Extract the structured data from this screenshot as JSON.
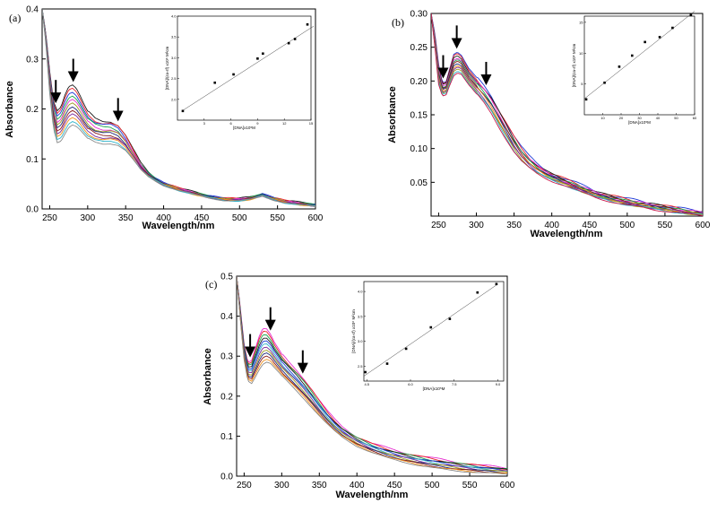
{
  "figure": {
    "panels": [
      {
        "panel_label": "(a)",
        "chart_data": {
          "type": "line",
          "xlabel": "Wavelength/nm",
          "ylabel": "Absorbance",
          "xlim": [
            240,
            600
          ],
          "ylim": [
            0.0,
            0.4
          ],
          "xticks": [
            "250",
            "300",
            "350",
            "400",
            "450",
            "500",
            "550",
            "600"
          ],
          "yticks": [
            "0.0",
            "0.1",
            "0.2",
            "0.3",
            "0.4"
          ],
          "series_count": 12,
          "colors": [
            "#1a1a1a",
            "#e8232a",
            "#1f3bd8",
            "#19a64b",
            "#e62fd1",
            "#9b9b1f",
            "#1e2a7a",
            "#8a1c1c",
            "#7a2a9e",
            "#f0901a",
            "#2fb3c9",
            "#8a8a8a"
          ],
          "profile": {
            "x": [
              240,
              245,
              250,
              255,
              260,
              265,
              270,
              275,
              280,
              285,
              290,
              295,
              300,
              310,
              320,
              330,
              340,
              350,
              360,
              370,
              380,
              390,
              400,
              420,
              440,
              460,
              480,
              500,
              515,
              530,
              545,
              560,
              580,
              600
            ],
            "top": [
              0.4,
              0.35,
              0.275,
              0.215,
              0.197,
              0.205,
              0.228,
              0.245,
              0.248,
              0.241,
              0.226,
              0.209,
              0.195,
              0.181,
              0.176,
              0.176,
              0.168,
              0.147,
              0.118,
              0.091,
              0.073,
              0.061,
              0.052,
              0.041,
              0.033,
              0.026,
              0.021,
              0.02,
              0.023,
              0.03,
              0.022,
              0.016,
              0.012,
              0.009
            ],
            "bottom": [
              0.4,
              0.33,
              0.23,
              0.16,
              0.133,
              0.136,
              0.15,
              0.163,
              0.168,
              0.165,
              0.158,
              0.149,
              0.141,
              0.133,
              0.13,
              0.131,
              0.128,
              0.117,
              0.098,
              0.078,
              0.064,
              0.055,
              0.047,
              0.037,
              0.029,
              0.022,
              0.017,
              0.016,
              0.019,
              0.026,
              0.018,
              0.012,
              0.008,
              0.005
            ]
          },
          "arrows_at_nm": [
            258,
            281,
            340
          ],
          "inset": {
            "type": "scatter",
            "xlabel": "[DNA]x10⁵M",
            "ylabel": "[DNA]/(εa-εf) x10⁸ M²cm",
            "xlim": [
              0,
              15
            ],
            "ylim": [
              1.5,
              4.0
            ],
            "xticks": [
              "3",
              "6",
              "9",
              "12",
              "15"
            ],
            "yticks": [
              "2.0",
              "2.5",
              "3.0",
              "3.5",
              "4.0"
            ],
            "points": [
              [
                0.6,
                1.72
              ],
              [
                4.2,
                2.4
              ],
              [
                6.3,
                2.6
              ],
              [
                9.0,
                2.98
              ],
              [
                9.6,
                3.1
              ],
              [
                12.5,
                3.35
              ],
              [
                13.2,
                3.45
              ],
              [
                14.6,
                3.8
              ]
            ],
            "fit_line": [
              [
                0.5,
                1.72
              ],
              [
                15.3,
                3.76
              ]
            ]
          }
        }
      },
      {
        "panel_label": "(b)",
        "chart_data": {
          "type": "line",
          "xlabel": "Wavelength/nm",
          "ylabel": "Absorbance",
          "xlim": [
            240,
            600
          ],
          "ylim": [
            0.0,
            0.3
          ],
          "xticks": [
            "250",
            "300",
            "350",
            "400",
            "450",
            "500",
            "550",
            "600"
          ],
          "yticks": [
            "0.05",
            "0.10",
            "0.15",
            "0.20",
            "0.25",
            "0.30"
          ],
          "series_count": 12,
          "colors": [
            "#1f3bd8",
            "#e8232a",
            "#1a1a1a",
            "#e62fd1",
            "#19a64b",
            "#8a1c1c",
            "#1e2a7a",
            "#f0901a",
            "#7a2a9e",
            "#9b9b1f",
            "#2fb3c9",
            "#c9184a"
          ],
          "profile": {
            "x": [
              240,
              245,
              250,
              255,
              260,
              265,
              270,
              275,
              280,
              285,
              290,
              300,
              310,
              320,
              330,
              340,
              350,
              360,
              370,
              380,
              390,
              400,
              420,
              440,
              460,
              480,
              500,
              520,
              540,
              560,
              580,
              600
            ],
            "top": [
              0.3,
              0.27,
              0.225,
              0.198,
              0.2,
              0.22,
              0.24,
              0.243,
              0.238,
              0.228,
              0.218,
              0.205,
              0.193,
              0.178,
              0.158,
              0.138,
              0.118,
              0.101,
              0.088,
              0.078,
              0.07,
              0.063,
              0.054,
              0.045,
              0.036,
              0.03,
              0.025,
              0.021,
              0.017,
              0.013,
              0.009,
              0.006
            ],
            "bottom": [
              0.3,
              0.25,
              0.195,
              0.178,
              0.18,
              0.195,
              0.208,
              0.212,
              0.21,
              0.202,
              0.194,
              0.181,
              0.168,
              0.152,
              0.132,
              0.113,
              0.095,
              0.081,
              0.071,
              0.063,
              0.057,
              0.052,
              0.044,
              0.035,
              0.027,
              0.021,
              0.016,
              0.013,
              0.009,
              0.006,
              0.003,
              0.001
            ]
          },
          "arrows_at_nm": [
            256,
            274,
            313
          ],
          "inset": {
            "type": "scatter",
            "xlabel": "[DNA]x10⁵M",
            "ylabel": "[DNA]/(εa-εf) x10⁸ M²cm",
            "xlim": [
              0,
              60
            ],
            "ylim": [
              0,
              16
            ],
            "xticks": [
              "10",
              "20",
              "30",
              "40",
              "50",
              "60"
            ],
            "yticks": [
              "5",
              "10",
              "15"
            ],
            "points": [
              [
                1,
                2.5
              ],
              [
                11,
                5.2
              ],
              [
                19,
                7.8
              ],
              [
                26,
                9.6
              ],
              [
                33,
                11.8
              ],
              [
                41,
                12.6
              ],
              [
                48,
                14.1
              ],
              [
                58,
                16.2
              ]
            ],
            "fit_line": [
              [
                0,
                2.6
              ],
              [
                60,
                16.8
              ]
            ]
          }
        }
      },
      {
        "panel_label": "(c)",
        "chart_data": {
          "type": "line",
          "xlabel": "Wavelength/nm",
          "ylabel": "Absorbance",
          "xlim": [
            240,
            600
          ],
          "ylim": [
            0.0,
            0.5
          ],
          "xticks": [
            "250",
            "300",
            "350",
            "400",
            "450",
            "500",
            "550",
            "600"
          ],
          "yticks": [
            "0.0",
            "0.1",
            "0.2",
            "0.3",
            "0.4",
            "0.5"
          ],
          "series_count": 12,
          "colors": [
            "#e62fd1",
            "#e8232a",
            "#19a64b",
            "#1a1a1a",
            "#1f3bd8",
            "#2fb3c9",
            "#7a2a9e",
            "#9b9b1f",
            "#1e2a7a",
            "#8a1c1c",
            "#f0901a",
            "#8a8a8a"
          ],
          "profile": {
            "x": [
              240,
              245,
              250,
              255,
              260,
              265,
              270,
              275,
              280,
              285,
              290,
              300,
              310,
              320,
              330,
              340,
              350,
              360,
              370,
              380,
              390,
              400,
              420,
              440,
              460,
              480,
              500,
              520,
              540,
              560,
              580,
              600
            ],
            "top": [
              0.5,
              0.42,
              0.33,
              0.285,
              0.29,
              0.32,
              0.35,
              0.37,
              0.368,
              0.355,
              0.335,
              0.305,
              0.284,
              0.265,
              0.243,
              0.218,
              0.19,
              0.164,
              0.142,
              0.124,
              0.111,
              0.099,
              0.082,
              0.07,
              0.06,
              0.052,
              0.045,
              0.039,
              0.033,
              0.028,
              0.024,
              0.02
            ],
            "bottom": [
              0.5,
              0.39,
              0.29,
              0.238,
              0.232,
              0.248,
              0.266,
              0.28,
              0.285,
              0.282,
              0.272,
              0.251,
              0.232,
              0.213,
              0.193,
              0.172,
              0.151,
              0.131,
              0.113,
              0.098,
              0.086,
              0.075,
              0.059,
              0.046,
              0.036,
              0.028,
              0.021,
              0.016,
              0.012,
              0.009,
              0.007,
              0.005
            ]
          },
          "arrows_at_nm": [
            258,
            285,
            328
          ],
          "inset": {
            "type": "scatter",
            "xlabel": "[DNA]x10⁵M",
            "ylabel": "[DNA]/(εa-εf) x10⁸ M²cm",
            "xlim": [
              4.4,
              9.2
            ],
            "ylim": [
              2.2,
              4.2
            ],
            "xticks": [
              "4.5",
              "6.0",
              "7.5",
              "9.0"
            ],
            "yticks": [
              "2.5",
              "3.0",
              "3.5",
              "4.0"
            ],
            "points": [
              [
                4.45,
                2.38
              ],
              [
                5.2,
                2.55
              ],
              [
                5.85,
                2.85
              ],
              [
                6.7,
                3.28
              ],
              [
                7.35,
                3.45
              ],
              [
                8.3,
                3.98
              ],
              [
                8.95,
                4.15
              ]
            ],
            "fit_line": [
              [
                4.4,
                2.3
              ],
              [
                9.0,
                4.15
              ]
            ]
          }
        }
      }
    ]
  }
}
